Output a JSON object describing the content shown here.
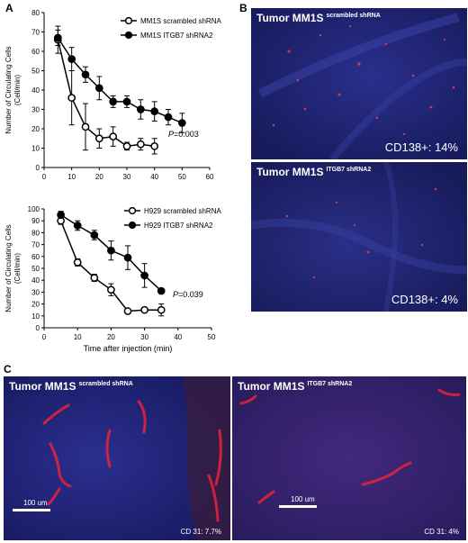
{
  "panels": {
    "a": "A",
    "b": "B",
    "c": "C"
  },
  "chart_data": [
    {
      "type": "line",
      "xlabel": "Time after injection (min)",
      "ylabel": "Number of Circulating Cells\n(Cell/min)",
      "xlim": [
        0,
        60
      ],
      "ylim": [
        0,
        80
      ],
      "xticks": [
        0,
        10,
        20,
        30,
        40,
        50,
        60
      ],
      "yticks": [
        0,
        10,
        20,
        30,
        40,
        50,
        60,
        70,
        80
      ],
      "legend_position": "top-right",
      "annotation": {
        "p_label": "P",
        "p_value": "=0.003"
      },
      "series": [
        {
          "name": "MM1S scrambled shRNA",
          "marker": "open-circle",
          "x": [
            5,
            10,
            15,
            20,
            25,
            30,
            35,
            40
          ],
          "y": [
            66,
            36,
            21,
            15,
            16,
            11,
            12,
            11
          ],
          "err": [
            7,
            14,
            12,
            5,
            5,
            2,
            3,
            4
          ]
        },
        {
          "name": "MM1S ITGB7 shRNA2",
          "marker": "filled-circle",
          "x": [
            5,
            10,
            15,
            20,
            25,
            30,
            35,
            40,
            45,
            50
          ],
          "y": [
            67,
            56,
            48,
            41,
            34,
            34,
            30,
            29,
            26,
            23
          ],
          "err": [
            4,
            6,
            4,
            6,
            3,
            3,
            5,
            5,
            4,
            5
          ]
        }
      ]
    },
    {
      "type": "line",
      "xlabel": "Time after injection (min)",
      "ylabel": "Number of Circulating Cells\n(Cell/min)",
      "xlim": [
        0,
        50
      ],
      "ylim": [
        0,
        100
      ],
      "xticks": [
        0,
        10,
        20,
        30,
        40,
        50
      ],
      "yticks": [
        0,
        10,
        20,
        30,
        40,
        50,
        60,
        70,
        80,
        90,
        100
      ],
      "legend_position": "top-right",
      "annotation": {
        "p_label": "P",
        "p_value": "=0.039"
      },
      "series": [
        {
          "name": "H929 scrambled shRNA",
          "marker": "open-circle",
          "x": [
            5,
            10,
            15,
            20,
            25,
            30,
            35
          ],
          "y": [
            90,
            55,
            42,
            32,
            14,
            15,
            15
          ],
          "err": [
            3,
            3,
            3,
            5,
            2,
            2,
            5
          ]
        },
        {
          "name": "H929 ITGB7 shRNA2",
          "marker": "filled-circle",
          "x": [
            5,
            10,
            15,
            20,
            25,
            30,
            35
          ],
          "y": [
            95,
            86,
            78,
            65,
            59,
            44,
            31
          ],
          "err": [
            3,
            4,
            4,
            8,
            10,
            10,
            2
          ]
        }
      ]
    }
  ],
  "micrographs": {
    "b_top": {
      "title": "Tumor MM1S",
      "sup": "scrambled shRNA",
      "stat": "CD138+: 14%"
    },
    "b_bottom": {
      "title": "Tumor MM1S",
      "sup": "ITGB7 shRNA2",
      "stat": "CD138+: 4%"
    },
    "c_left": {
      "title": "Tumor MM1S",
      "sup": "scrambled shRNA",
      "stat": "CD 31: 7.7%",
      "scale": "100 um"
    },
    "c_right": {
      "title": "Tumor MM1S",
      "sup": "ITGB7 shRNA2",
      "stat": "CD 31: 4%",
      "scale": "100 um"
    }
  },
  "colors": {
    "micro_bg": "#1c1d6e",
    "vessel": "#e0223a"
  }
}
